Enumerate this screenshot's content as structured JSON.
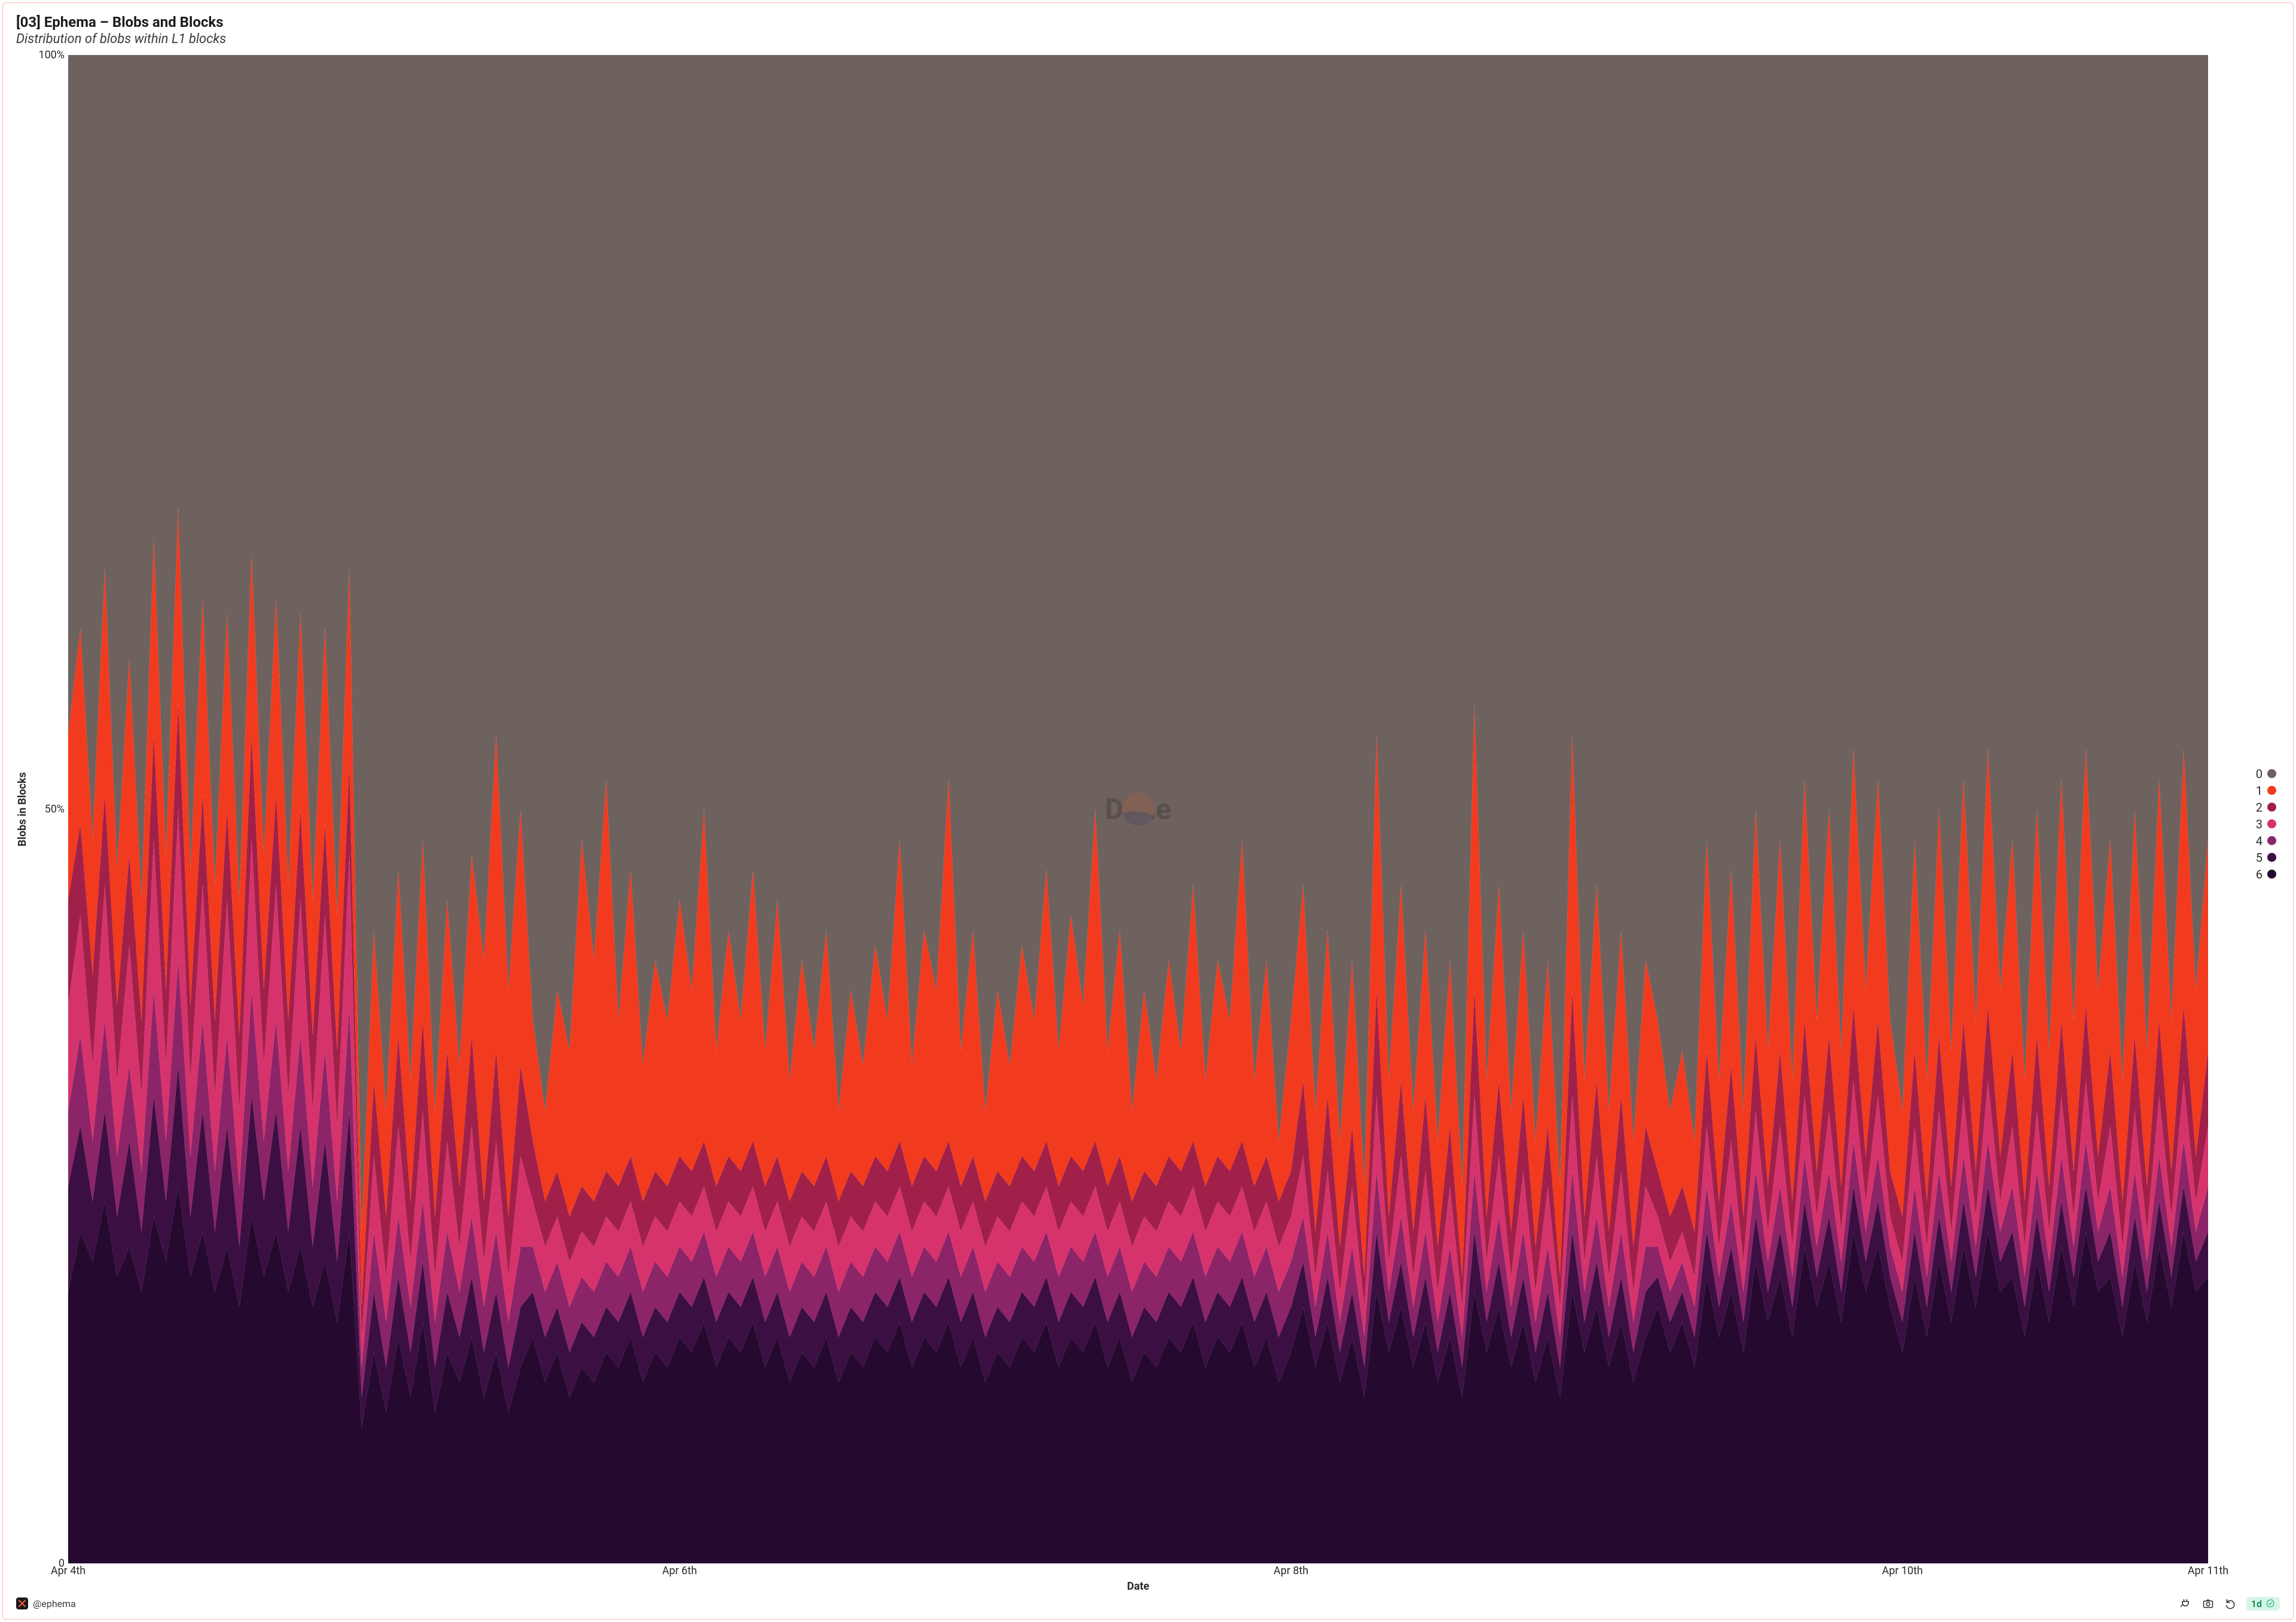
{
  "card": {
    "border_color": "#f7bda8",
    "background_color": "#ffffff"
  },
  "header": {
    "title": "[03] Ephema – Blobs and Blocks",
    "title_fontsize": 24,
    "title_color": "#1a1a1a",
    "subtitle": "Distribution of blobs within L1 blocks",
    "subtitle_fontsize": 22,
    "subtitle_color": "#3a3a3a"
  },
  "chart": {
    "type": "area-stacked-100",
    "xlabel": "Date",
    "ylabel": "Blobs in Blocks",
    "label_fontsize": 18,
    "tick_fontsize": 18,
    "tick_color": "#2b2b2b",
    "ylim": [
      0,
      100
    ],
    "yticks": [
      {
        "value": 0,
        "label": "0"
      },
      {
        "value": 50,
        "label": "50%"
      },
      {
        "value": 100,
        "label": "100%"
      }
    ],
    "n_points": 176,
    "xticks": [
      {
        "index": 0,
        "label": "Apr 4th"
      },
      {
        "index": 50,
        "label": "Apr 6th"
      },
      {
        "index": 100,
        "label": "Apr 8th"
      },
      {
        "index": 150,
        "label": "Apr 10th"
      },
      {
        "index": 175,
        "label": "Apr 11th"
      }
    ],
    "series": [
      {
        "name": "6",
        "color": "#25092f"
      },
      {
        "name": "5",
        "color": "#3b0f42"
      },
      {
        "name": "4",
        "color": "#8c2468"
      },
      {
        "name": "3",
        "color": "#d6336c"
      },
      {
        "name": "2",
        "color": "#a0204a"
      },
      {
        "name": "1",
        "color": "#f23a1f"
      },
      {
        "name": "0",
        "color": "#6e625e"
      }
    ],
    "legend": [
      {
        "label": "0",
        "color": "#6e625e"
      },
      {
        "label": "1",
        "color": "#f23a1f"
      },
      {
        "label": "2",
        "color": "#a0204a"
      },
      {
        "label": "3",
        "color": "#d6336c"
      },
      {
        "label": "4",
        "color": "#8c2468"
      },
      {
        "label": "5",
        "color": "#3b0f42"
      },
      {
        "label": "6",
        "color": "#25092f"
      }
    ],
    "legend_fontsize": 20,
    "cum_tops": {
      "6": [
        18,
        22,
        20,
        24,
        19,
        21,
        18,
        23,
        20,
        25,
        19,
        22,
        18,
        21,
        17,
        23,
        19,
        22,
        18,
        21,
        17,
        20,
        16,
        22,
        9,
        14,
        10,
        15,
        11,
        16,
        10,
        14,
        12,
        15,
        11,
        14,
        10,
        13,
        15,
        12,
        14,
        11,
        13,
        12,
        14,
        13,
        15,
        12,
        14,
        13,
        15,
        14,
        16,
        13,
        15,
        14,
        16,
        13,
        15,
        12,
        14,
        13,
        15,
        12,
        14,
        13,
        15,
        14,
        16,
        13,
        15,
        14,
        16,
        13,
        15,
        12,
        14,
        13,
        15,
        14,
        16,
        13,
        15,
        14,
        16,
        13,
        15,
        12,
        14,
        13,
        15,
        14,
        16,
        13,
        15,
        14,
        16,
        13,
        15,
        12,
        14,
        17,
        13,
        16,
        12,
        15,
        11,
        18,
        14,
        17,
        13,
        16,
        12,
        15,
        11,
        18,
        14,
        17,
        13,
        16,
        12,
        15,
        11,
        18,
        14,
        17,
        13,
        16,
        12,
        15,
        17,
        14,
        16,
        13,
        19,
        15,
        18,
        14,
        20,
        16,
        19,
        15,
        21,
        17,
        20,
        16,
        22,
        18,
        21,
        17,
        14,
        19,
        15,
        20,
        16,
        21,
        17,
        22,
        18,
        19,
        15,
        20,
        16,
        21,
        17,
        22,
        18,
        19,
        15,
        20,
        16,
        21,
        17,
        22,
        18,
        19
      ],
      "5": [
        25,
        29,
        24,
        30,
        23,
        28,
        22,
        31,
        24,
        33,
        23,
        30,
        22,
        29,
        21,
        31,
        24,
        30,
        22,
        29,
        21,
        28,
        20,
        30,
        11,
        18,
        13,
        19,
        14,
        20,
        13,
        18,
        15,
        19,
        14,
        18,
        13,
        17,
        18,
        15,
        17,
        14,
        16,
        15,
        17,
        16,
        18,
        15,
        17,
        16,
        18,
        17,
        19,
        16,
        18,
        17,
        19,
        16,
        18,
        15,
        17,
        16,
        18,
        15,
        17,
        16,
        18,
        17,
        19,
        16,
        18,
        17,
        19,
        16,
        18,
        15,
        17,
        16,
        18,
        17,
        19,
        16,
        18,
        17,
        19,
        16,
        18,
        15,
        17,
        16,
        18,
        17,
        19,
        16,
        18,
        17,
        19,
        16,
        18,
        15,
        17,
        20,
        15,
        19,
        14,
        18,
        13,
        22,
        16,
        20,
        15,
        19,
        14,
        18,
        13,
        22,
        16,
        20,
        15,
        19,
        14,
        18,
        13,
        22,
        16,
        20,
        15,
        19,
        14,
        18,
        19,
        16,
        18,
        15,
        22,
        17,
        21,
        16,
        23,
        18,
        22,
        17,
        24,
        19,
        23,
        18,
        25,
        20,
        24,
        19,
        16,
        22,
        17,
        23,
        18,
        24,
        19,
        25,
        20,
        22,
        17,
        23,
        18,
        24,
        19,
        25,
        20,
        22,
        17,
        23,
        18,
        24,
        19,
        25,
        20,
        22
      ],
      "4": [
        30,
        35,
        28,
        36,
        27,
        33,
        26,
        38,
        28,
        40,
        27,
        36,
        26,
        35,
        25,
        38,
        28,
        36,
        26,
        35,
        25,
        34,
        24,
        37,
        13,
        22,
        16,
        23,
        17,
        24,
        16,
        22,
        18,
        23,
        17,
        22,
        16,
        21,
        21,
        18,
        20,
        17,
        19,
        18,
        20,
        19,
        21,
        18,
        20,
        19,
        21,
        20,
        22,
        19,
        21,
        20,
        22,
        19,
        21,
        18,
        20,
        19,
        21,
        18,
        20,
        19,
        21,
        20,
        22,
        19,
        21,
        20,
        22,
        19,
        21,
        18,
        20,
        19,
        21,
        20,
        22,
        19,
        21,
        20,
        22,
        19,
        21,
        18,
        20,
        19,
        21,
        20,
        22,
        19,
        21,
        20,
        22,
        19,
        21,
        18,
        20,
        23,
        17,
        22,
        16,
        21,
        15,
        26,
        18,
        23,
        17,
        22,
        16,
        21,
        15,
        26,
        18,
        23,
        17,
        22,
        16,
        21,
        15,
        26,
        18,
        23,
        17,
        22,
        16,
        21,
        21,
        18,
        20,
        17,
        25,
        19,
        24,
        18,
        26,
        20,
        25,
        19,
        27,
        21,
        26,
        20,
        28,
        22,
        27,
        21,
        18,
        25,
        19,
        26,
        20,
        27,
        21,
        28,
        22,
        25,
        19,
        26,
        20,
        27,
        21,
        28,
        22,
        25,
        19,
        26,
        20,
        27,
        21,
        28,
        22,
        25
      ],
      "3": [
        37,
        43,
        33,
        45,
        32,
        41,
        31,
        48,
        33,
        50,
        32,
        45,
        31,
        44,
        30,
        48,
        33,
        45,
        31,
        44,
        30,
        43,
        29,
        47,
        15,
        27,
        19,
        29,
        20,
        30,
        19,
        28,
        21,
        29,
        20,
        28,
        19,
        27,
        24,
        21,
        23,
        20,
        22,
        21,
        23,
        22,
        24,
        21,
        23,
        22,
        24,
        23,
        25,
        22,
        24,
        23,
        25,
        22,
        24,
        21,
        23,
        22,
        24,
        21,
        23,
        22,
        24,
        23,
        25,
        22,
        24,
        23,
        25,
        22,
        24,
        21,
        23,
        22,
        24,
        23,
        25,
        22,
        24,
        23,
        25,
        22,
        24,
        21,
        23,
        22,
        24,
        23,
        25,
        22,
        24,
        23,
        25,
        22,
        24,
        21,
        23,
        27,
        19,
        26,
        18,
        25,
        17,
        31,
        20,
        27,
        19,
        26,
        18,
        25,
        17,
        31,
        20,
        27,
        19,
        26,
        18,
        25,
        17,
        31,
        20,
        27,
        19,
        26,
        18,
        25,
        23,
        20,
        22,
        19,
        29,
        21,
        28,
        20,
        30,
        22,
        29,
        21,
        31,
        23,
        30,
        22,
        32,
        24,
        31,
        23,
        20,
        29,
        21,
        30,
        22,
        31,
        23,
        32,
        24,
        29,
        21,
        30,
        22,
        31,
        23,
        32,
        24,
        29,
        21,
        30,
        22,
        31,
        23,
        32,
        24,
        29
      ],
      "2": [
        44,
        49,
        39,
        51,
        37,
        47,
        36,
        55,
        38,
        57,
        37,
        51,
        36,
        50,
        35,
        55,
        38,
        51,
        36,
        50,
        35,
        49,
        34,
        53,
        17,
        32,
        23,
        35,
        24,
        36,
        23,
        34,
        25,
        35,
        24,
        34,
        23,
        33,
        28,
        24,
        26,
        23,
        25,
        24,
        26,
        25,
        27,
        24,
        26,
        25,
        27,
        26,
        28,
        25,
        27,
        26,
        28,
        25,
        27,
        24,
        26,
        25,
        27,
        24,
        26,
        25,
        27,
        26,
        28,
        25,
        27,
        26,
        28,
        25,
        27,
        24,
        26,
        25,
        27,
        26,
        28,
        25,
        27,
        26,
        28,
        25,
        27,
        24,
        26,
        25,
        27,
        26,
        28,
        25,
        27,
        26,
        28,
        25,
        27,
        24,
        26,
        32,
        22,
        31,
        21,
        29,
        19,
        38,
        23,
        32,
        22,
        31,
        21,
        29,
        19,
        38,
        23,
        32,
        22,
        31,
        21,
        29,
        19,
        38,
        23,
        32,
        22,
        31,
        21,
        29,
        26,
        23,
        25,
        22,
        34,
        24,
        33,
        23,
        35,
        25,
        34,
        24,
        36,
        26,
        35,
        25,
        37,
        27,
        36,
        26,
        23,
        34,
        24,
        35,
        25,
        36,
        26,
        37,
        27,
        34,
        24,
        35,
        25,
        36,
        26,
        37,
        27,
        34,
        24,
        35,
        25,
        36,
        26,
        37,
        27,
        34
      ],
      "1": [
        55,
        62,
        48,
        66,
        46,
        60,
        44,
        68,
        47,
        70,
        46,
        64,
        45,
        63,
        44,
        67,
        47,
        64,
        45,
        63,
        44,
        62,
        43,
        66,
        22,
        42,
        30,
        46,
        32,
        48,
        30,
        44,
        33,
        47,
        40,
        55,
        38,
        50,
        36,
        30,
        38,
        34,
        48,
        40,
        52,
        36,
        46,
        33,
        40,
        36,
        44,
        38,
        50,
        34,
        42,
        36,
        46,
        34,
        44,
        32,
        40,
        34,
        42,
        30,
        38,
        33,
        41,
        36,
        48,
        33,
        42,
        38,
        52,
        34,
        42,
        30,
        38,
        33,
        41,
        36,
        46,
        34,
        43,
        37,
        50,
        34,
        42,
        30,
        38,
        32,
        40,
        34,
        45,
        32,
        40,
        36,
        48,
        32,
        40,
        28,
        36,
        45,
        30,
        42,
        28,
        40,
        25,
        55,
        32,
        45,
        30,
        42,
        28,
        40,
        25,
        57,
        32,
        45,
        30,
        42,
        28,
        40,
        25,
        55,
        32,
        45,
        30,
        42,
        28,
        40,
        36,
        30,
        34,
        28,
        48,
        32,
        46,
        30,
        50,
        34,
        48,
        32,
        52,
        36,
        50,
        34,
        54,
        38,
        52,
        36,
        30,
        48,
        32,
        50,
        34,
        52,
        36,
        54,
        38,
        48,
        32,
        50,
        34,
        52,
        36,
        54,
        38,
        48,
        32,
        50,
        34,
        52,
        36,
        54,
        38,
        48
      ]
    }
  },
  "watermark": {
    "text": "Dune",
    "fontsize": 48,
    "logo_top_color": "#e05a2b",
    "logo_bottom_color": "#2b2b60",
    "logo_size": 90
  },
  "footer": {
    "avatar_bg": "#1a1a1a",
    "avatar_fg": "#f05a3a",
    "handle": "@ephema",
    "handle_color": "#3a3a3a",
    "handle_fontsize": 16,
    "icon_color": "#2b2b2b",
    "badge": {
      "text": "1d",
      "text_color": "#0a8a55",
      "bg": "#d7f5e7",
      "check_color": "#17b573"
    }
  }
}
